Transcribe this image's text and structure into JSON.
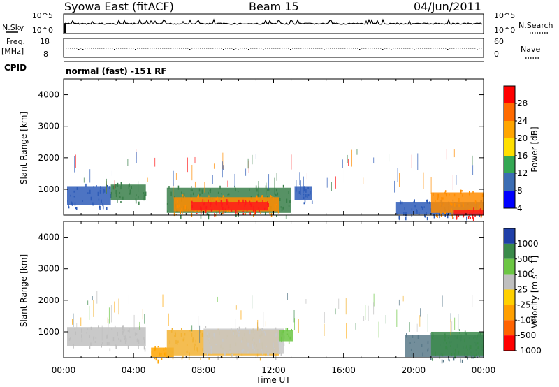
{
  "header": {
    "title": "Syowa East (fitACF)",
    "beam": "Beam 15",
    "date": "04/Jun/2011"
  },
  "noise_panel": {
    "left_label": "N.Sky",
    "right_label": "N.Search",
    "ytick_left": [
      "10^5",
      "10^0"
    ],
    "ytick_right": [
      "10^5",
      "10^0"
    ]
  },
  "freq_panel": {
    "left_label_1": "Freq.",
    "left_label_2": "[MHz]",
    "right_label": "Nave",
    "ytick_left": [
      "18",
      "8"
    ],
    "ytick_right": [
      "60",
      "0"
    ]
  },
  "cpid": {
    "label": "CPID",
    "mode": "normal (fast) -151 RF"
  },
  "chart_data": [
    {
      "type": "heatmap",
      "name": "Power",
      "xlabel": "Time UT",
      "ylabel": "Slant Range [km]",
      "ylim": [
        180,
        4500
      ],
      "xlim": [
        "00:00",
        "24:00"
      ],
      "yticks": [
        "4000",
        "3000",
        "2000",
        "1000"
      ],
      "colorbar": {
        "label": "Power [dB]",
        "ticks": [
          "28",
          "24",
          "20",
          "16",
          "12",
          "8",
          "4"
        ],
        "colors": [
          "#ff0000",
          "#ff6a00",
          "#ffa500",
          "#ffdf00",
          "#34a853",
          "#3b6db3",
          "#0000ff"
        ]
      },
      "regions": [
        {
          "t0": 0.2,
          "t1": 2.7,
          "r0": 500,
          "r1": 1100,
          "color": "#2e5cb8"
        },
        {
          "t0": 2.7,
          "t1": 4.7,
          "r0": 650,
          "r1": 1150,
          "color": "#3a7f4a"
        },
        {
          "t0": 5.9,
          "t1": 13.0,
          "r0": 250,
          "r1": 1050,
          "color": "#3a7f4a"
        },
        {
          "t0": 6.3,
          "t1": 12.3,
          "r0": 300,
          "r1": 750,
          "color": "#ff8c00"
        },
        {
          "t0": 7.3,
          "t1": 11.7,
          "r0": 330,
          "r1": 600,
          "color": "#ff1a1a"
        },
        {
          "t0": 13.2,
          "t1": 14.2,
          "r0": 650,
          "r1": 1100,
          "color": "#2e5cb8"
        },
        {
          "t0": 19.0,
          "t1": 24.0,
          "r0": 200,
          "r1": 600,
          "color": "#2e5cb8"
        },
        {
          "t0": 21.0,
          "t1": 24.0,
          "r0": 250,
          "r1": 900,
          "color": "#ff8c00"
        },
        {
          "t0": 22.3,
          "t1": 24.0,
          "r0": 180,
          "r1": 350,
          "color": "#ff1a1a"
        }
      ]
    },
    {
      "type": "heatmap",
      "name": "Velocity",
      "xlabel": "Time UT",
      "ylabel": "Slant Range [km]",
      "ylim": [
        180,
        4500
      ],
      "xlim": [
        "00:00",
        "24:00"
      ],
      "yticks": [
        "4000",
        "3000",
        "2000",
        "1000"
      ],
      "colorbar": {
        "label": "Velocity [m s^-1]",
        "ticks": [
          "1000",
          "500",
          "100",
          "25",
          "-25",
          "-100",
          "-500",
          "-1000"
        ],
        "colors": [
          "#1f3fa8",
          "#3a8a4a",
          "#6cc644",
          "#bfbfbf",
          "#ffd000",
          "#ff9f00",
          "#ff6200",
          "#ff0000"
        ]
      },
      "regions": [
        {
          "t0": 0.2,
          "t1": 4.7,
          "r0": 550,
          "r1": 1150,
          "color": "#bfbfbf"
        },
        {
          "t0": 5.0,
          "t1": 6.3,
          "r0": 200,
          "r1": 500,
          "color": "#ffa500"
        },
        {
          "t0": 5.9,
          "t1": 12.3,
          "r0": 250,
          "r1": 1050,
          "color": "#f2b233"
        },
        {
          "t0": 8.0,
          "t1": 12.6,
          "r0": 300,
          "r1": 1100,
          "color": "#c8c8c8"
        },
        {
          "t0": 12.3,
          "t1": 13.1,
          "r0": 700,
          "r1": 1050,
          "color": "#6cc644"
        },
        {
          "t0": 19.5,
          "t1": 24.0,
          "r0": 200,
          "r1": 900,
          "color": "#5a7a8a"
        },
        {
          "t0": 21.0,
          "t1": 24.0,
          "r0": 250,
          "r1": 1000,
          "color": "#3a8a4a"
        }
      ]
    }
  ],
  "xticks": [
    "00:00",
    "04:00",
    "08:00",
    "12:00",
    "16:00",
    "20:00",
    "00:00"
  ],
  "xlabel": "Time UT"
}
